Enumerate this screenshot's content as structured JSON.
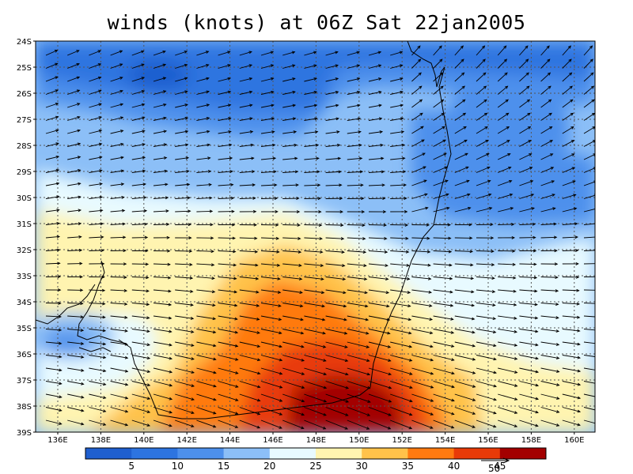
{
  "title": "winds (knots) at 06Z Sat 22jan2005",
  "lat_labels": [
    "24S",
    "25S",
    "26S",
    "27S",
    "28S",
    "29S",
    "30S",
    "31S",
    "32S",
    "33S",
    "34S",
    "35S",
    "36S",
    "37S",
    "38S",
    "39S"
  ],
  "lon_labels": [
    "136E",
    "138E",
    "140E",
    "142E",
    "144E",
    "146E",
    "148E",
    "150E",
    "152E",
    "154E",
    "156E",
    "158E",
    "160E"
  ],
  "colorbar": {
    "levels": [
      "5",
      "10",
      "15",
      "20",
      "25",
      "30",
      "35",
      "40",
      "45"
    ],
    "colors": [
      "#1f5fcf",
      "#2d74e0",
      "#4d90ec",
      "#8cbff7",
      "#e8faff",
      "#fff4b0",
      "#ffc24a",
      "#ff7a10",
      "#e83a08",
      "#a30000"
    ]
  },
  "reference_vector": {
    "label": "50"
  },
  "colors": {
    "frame": "#000000",
    "grid": "#555555",
    "coast": "#000000",
    "arrow": "#000000"
  }
}
